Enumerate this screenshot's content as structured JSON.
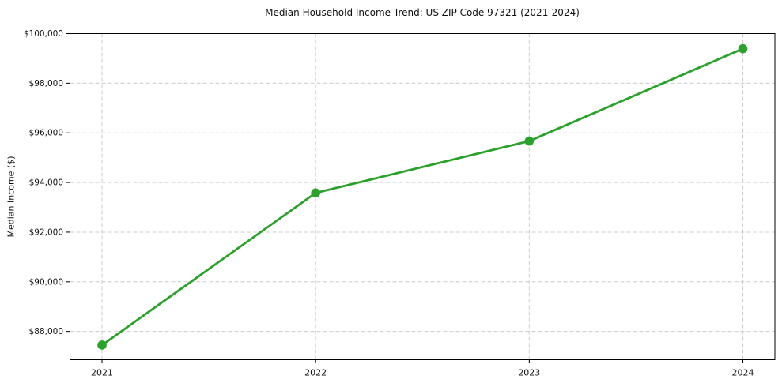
{
  "chart_data": {
    "type": "line",
    "title": "Median Household Income Trend: US ZIP Code 97321 (2021-2024)",
    "xlabel": "",
    "ylabel": "Median Income ($)",
    "x": [
      2021,
      2022,
      2023,
      2024
    ],
    "x_tick_labels": [
      "2021",
      "2022",
      "2023",
      "2024"
    ],
    "series": [
      {
        "name": "Median Household Income",
        "values": [
          87450,
          93580,
          95670,
          99390
        ],
        "color": "#2ca02c",
        "marker": "circle"
      }
    ],
    "y_ticks": [
      88000,
      90000,
      92000,
      94000,
      96000,
      98000,
      100000
    ],
    "y_tick_labels": [
      "$88,000",
      "$90,000",
      "$92,000",
      "$94,000",
      "$96,000",
      "$98,000",
      "$100,000"
    ],
    "xlim": [
      2020.85,
      2024.15
    ],
    "ylim": [
      86860,
      100000
    ],
    "grid": "both, dashed",
    "legend": "none",
    "colors": {
      "line": "#2ca02c",
      "grid": "#cccccc",
      "spine": "#000000",
      "text": "#111111",
      "background": "#ffffff"
    }
  }
}
